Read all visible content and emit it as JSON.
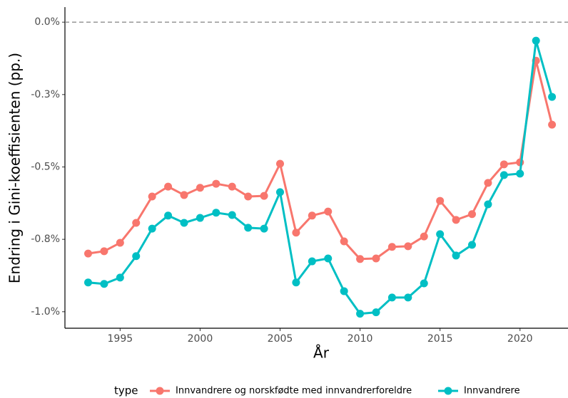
{
  "chart_data": {
    "type": "line",
    "x": [
      1993,
      1994,
      1995,
      1996,
      1997,
      1998,
      1999,
      2000,
      2001,
      2002,
      2003,
      2004,
      2005,
      2006,
      2007,
      2008,
      2009,
      2010,
      2011,
      2012,
      2013,
      2014,
      2015,
      2016,
      2017,
      2018,
      2019,
      2020,
      2021,
      2022
    ],
    "series": [
      {
        "name": "Innvandrere og norskfødte med innvandrerforeldre",
        "color": "#F8766D",
        "values": [
          -0.799,
          -0.791,
          -0.762,
          -0.693,
          -0.602,
          -0.568,
          -0.597,
          -0.572,
          -0.558,
          -0.568,
          -0.602,
          -0.6,
          -0.489,
          -0.727,
          -0.668,
          -0.654,
          -0.757,
          -0.818,
          -0.816,
          -0.776,
          -0.774,
          -0.74,
          -0.617,
          -0.683,
          -0.663,
          -0.555,
          -0.491,
          -0.484,
          -0.133,
          -0.354
        ]
      },
      {
        "name": "Innvandrere",
        "color": "#00BFC4",
        "values": [
          -0.899,
          -0.904,
          -0.882,
          -0.808,
          -0.713,
          -0.668,
          -0.693,
          -0.676,
          -0.658,
          -0.666,
          -0.71,
          -0.713,
          -0.587,
          -0.899,
          -0.826,
          -0.816,
          -0.929,
          -1.007,
          -1.002,
          -0.951,
          -0.951,
          -0.902,
          -0.732,
          -0.806,
          -0.769,
          -0.629,
          -0.528,
          -0.523,
          -0.064,
          -0.258
        ]
      }
    ],
    "xlabel": "År",
    "ylabel": "Endring i Gini-koeffisienten (pp.)",
    "legend_title": "type",
    "legend_position": "bottom",
    "hline": 0,
    "xlim": [
      1991.55,
      2023
    ],
    "xticks": [
      1995,
      2000,
      2005,
      2010,
      2015,
      2020
    ],
    "ylim": [
      -1.057,
      0.052
    ],
    "yticks": [
      {
        "value": 0,
        "label": "0.0%"
      },
      {
        "value": -0.25,
        "label": "-0.3%"
      },
      {
        "value": -0.5,
        "label": "-0.5%"
      },
      {
        "value": -0.75,
        "label": "-0.8%"
      },
      {
        "value": -1.0,
        "label": "-1.0%"
      }
    ]
  }
}
